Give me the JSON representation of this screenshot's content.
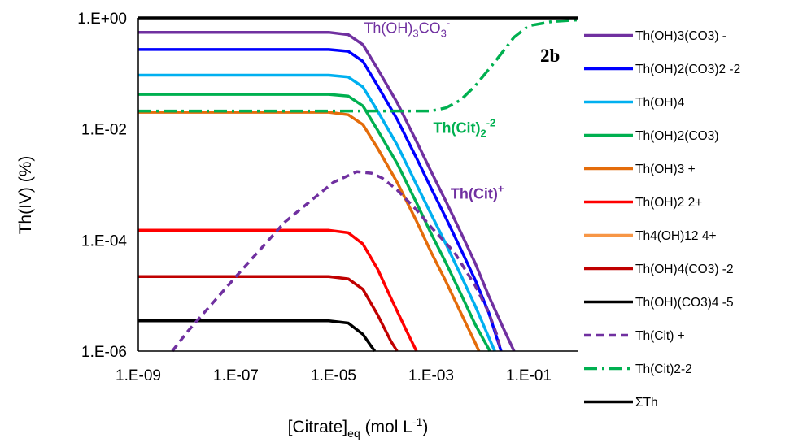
{
  "chart_data": {
    "type": "line",
    "title": "",
    "panel_label": "2b",
    "xlabel": {
      "main": "[Citrate]",
      "sub": "eq",
      "tail": " (mol L",
      "sup": "-1",
      "end": ")"
    },
    "ylabel": "Th(IV) (%)",
    "x_scale": "log",
    "y_scale": "log",
    "xlim": [
      1e-09,
      1
    ],
    "ylim": [
      1e-06,
      1
    ],
    "x_ticks": [
      {
        "value": 1e-09,
        "label": "1.E-09"
      },
      {
        "value": 1e-07,
        "label": "1.E-07"
      },
      {
        "value": 1e-05,
        "label": "1.E-05"
      },
      {
        "value": 0.001,
        "label": "1.E-03"
      },
      {
        "value": 0.1,
        "label": "1.E-01"
      }
    ],
    "y_ticks": [
      {
        "value": 1e-06,
        "label": "1.E-06"
      },
      {
        "value": 0.0001,
        "label": "1.E-04"
      },
      {
        "value": 0.01,
        "label": "1.E-02"
      },
      {
        "value": 1,
        "label": "1.E+00"
      }
    ],
    "legend_position": "right",
    "series": [
      {
        "name": "Th(OH)3(CO3) -",
        "color": "#7030A0",
        "dash": "solid",
        "points": [
          [
            1e-09,
            0.55
          ],
          [
            8e-06,
            0.55
          ],
          [
            2e-05,
            0.5
          ],
          [
            4e-05,
            0.33
          ],
          [
            8e-05,
            0.12
          ],
          [
            0.0002,
            0.03
          ],
          [
            0.0005,
            0.006
          ],
          [
            0.001,
            0.0017
          ],
          [
            0.002,
            0.0005
          ],
          [
            0.004,
            0.00014
          ],
          [
            0.008,
            3.8e-05
          ],
          [
            0.015,
            1e-05
          ],
          [
            0.03,
            2.6e-06
          ],
          [
            0.05,
            1e-06
          ]
        ]
      },
      {
        "name": "Th(OH)2(CO3)2 -2",
        "color": "#0000FF",
        "dash": "solid",
        "points": [
          [
            1e-09,
            0.27
          ],
          [
            8e-06,
            0.27
          ],
          [
            2e-05,
            0.25
          ],
          [
            4e-05,
            0.165
          ],
          [
            8e-05,
            0.06
          ],
          [
            0.0002,
            0.015
          ],
          [
            0.0005,
            0.003
          ],
          [
            0.001,
            0.00085
          ],
          [
            0.002,
            0.00025
          ],
          [
            0.004,
            7e-05
          ],
          [
            0.008,
            1.9e-05
          ],
          [
            0.015,
            5e-06
          ],
          [
            0.027,
            1e-06
          ]
        ]
      },
      {
        "name": "Th(OH)4",
        "color": "#00B0F0",
        "dash": "solid",
        "points": [
          [
            1e-09,
            0.093
          ],
          [
            8e-06,
            0.093
          ],
          [
            2e-05,
            0.086
          ],
          [
            4e-05,
            0.057
          ],
          [
            8e-05,
            0.021
          ],
          [
            0.0002,
            0.0052
          ],
          [
            0.0005,
            0.001
          ],
          [
            0.001,
            0.00029
          ],
          [
            0.002,
            8.5e-05
          ],
          [
            0.004,
            2.4e-05
          ],
          [
            0.008,
            6.5e-06
          ],
          [
            0.015,
            1.8e-06
          ],
          [
            0.02,
            1e-06
          ]
        ]
      },
      {
        "name": "Th(OH)2(CO3)",
        "color": "#00B050",
        "dash": "solid",
        "points": [
          [
            1e-09,
            0.042
          ],
          [
            8e-06,
            0.042
          ],
          [
            2e-05,
            0.039
          ],
          [
            4e-05,
            0.026
          ],
          [
            8e-05,
            0.0095
          ],
          [
            0.0002,
            0.0024
          ],
          [
            0.0005,
            0.00047
          ],
          [
            0.001,
            0.00013
          ],
          [
            0.002,
            3.9e-05
          ],
          [
            0.004,
            1.1e-05
          ],
          [
            0.008,
            3e-06
          ],
          [
            0.016,
            1e-06
          ]
        ]
      },
      {
        "name": "Th(OH)3 +",
        "color": "#E46C0A",
        "dash": "solid",
        "points": [
          [
            1e-09,
            0.02
          ],
          [
            8e-06,
            0.02
          ],
          [
            2e-05,
            0.018
          ],
          [
            4e-05,
            0.012
          ],
          [
            8e-05,
            0.0045
          ],
          [
            0.0002,
            0.0011
          ],
          [
            0.0005,
            0.00022
          ],
          [
            0.001,
            6e-05
          ],
          [
            0.002,
            1.8e-05
          ],
          [
            0.004,
            5e-06
          ],
          [
            0.008,
            1.4e-06
          ],
          [
            0.0095,
            1e-06
          ]
        ]
      },
      {
        "name": "Th(OH)2 2+",
        "color": "#FF0000",
        "dash": "solid",
        "points": [
          [
            1e-09,
            0.00015
          ],
          [
            8e-06,
            0.00015
          ],
          [
            2e-05,
            0.000135
          ],
          [
            4e-05,
            8.5e-05
          ],
          [
            8e-05,
            3e-05
          ],
          [
            0.00015,
            9e-06
          ],
          [
            0.0003,
            2.5e-06
          ],
          [
            0.0005,
            1e-06
          ]
        ]
      },
      {
        "name": "Th4(OH)12 4+",
        "color": "#F79646",
        "dash": "solid",
        "points": []
      },
      {
        "name": "Th(OH)4(CO3) -2",
        "color": "#C00000",
        "dash": "solid",
        "points": [
          [
            1e-09,
            2.2e-05
          ],
          [
            8e-06,
            2.2e-05
          ],
          [
            2e-05,
            2e-05
          ],
          [
            4e-05,
            1.3e-05
          ],
          [
            8e-05,
            4.5e-06
          ],
          [
            0.00015,
            1.5e-06
          ],
          [
            0.0002,
            1e-06
          ]
        ]
      },
      {
        "name": "Th(OH)(CO3)4 -5",
        "color": "#000000",
        "dash": "solid",
        "points": [
          [
            1e-09,
            3.5e-06
          ],
          [
            8e-06,
            3.5e-06
          ],
          [
            2e-05,
            3.2e-06
          ],
          [
            4e-05,
            2e-06
          ],
          [
            6e-05,
            1.2e-06
          ],
          [
            7e-05,
            1e-06
          ]
        ]
      },
      {
        "name": "Th(Cit) +",
        "color": "#7030A0",
        "dash": "dash",
        "points": [
          [
            5e-09,
            1e-06
          ],
          [
            1e-08,
            2.2e-06
          ],
          [
            1e-07,
            2.2e-05
          ],
          [
            1e-06,
            0.00021
          ],
          [
            1e-05,
            0.0011
          ],
          [
            3e-05,
            0.0017
          ],
          [
            6e-05,
            0.0016
          ],
          [
            0.0001,
            0.0013
          ],
          [
            0.0002,
            0.0008
          ],
          [
            0.0005,
            0.00035
          ],
          [
            0.001,
            0.00017
          ],
          [
            0.003,
            6e-05
          ],
          [
            0.008,
            1.5e-05
          ],
          [
            0.015,
            5e-06
          ],
          [
            0.022,
            2e-06
          ],
          [
            0.027,
            1e-06
          ]
        ]
      },
      {
        "name": "Th(Cit)2-2",
        "color": "#00B050",
        "dash": "dashdot",
        "points": [
          [
            1e-09,
            0.021
          ],
          [
            1e-05,
            0.021
          ],
          [
            0.0001,
            0.021
          ],
          [
            0.001,
            0.021
          ],
          [
            0.002,
            0.024
          ],
          [
            0.004,
            0.033
          ],
          [
            0.008,
            0.06
          ],
          [
            0.02,
            0.16
          ],
          [
            0.05,
            0.45
          ],
          [
            0.1,
            0.72
          ],
          [
            0.3,
            0.86
          ],
          [
            1,
            0.92
          ]
        ]
      },
      {
        "name": "ΣTh",
        "color": "#000000",
        "dash": "solid",
        "points": [
          [
            1e-09,
            1
          ],
          [
            1,
            1
          ]
        ]
      }
    ],
    "annotations": [
      {
        "text": "Th(OH)",
        "sub1": "3",
        "mid": "CO",
        "sub2": "3",
        "sup": "-",
        "color": "#7030A0",
        "bold": false,
        "anchor": [
          4.2e-05,
          0.54
        ]
      },
      {
        "text": "Th(Cit)",
        "sub1": "2",
        "sup": "-2",
        "color": "#00B050",
        "bold": true,
        "anchor": [
          0.0011,
          0.0085
        ]
      },
      {
        "text": "Th(Cit)",
        "sup": "+",
        "color": "#7030A0",
        "bold": true,
        "anchor": [
          0.0025,
          0.00055
        ]
      }
    ]
  }
}
